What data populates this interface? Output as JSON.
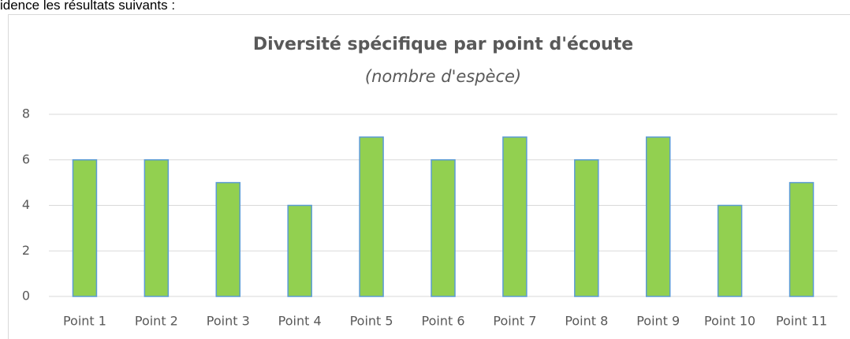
{
  "page_text": "idence les résultats suivants :",
  "chart_data": {
    "type": "bar",
    "title": "Diversité spécifique par point d'écoute",
    "subtitle": "(nombre d'espèce)",
    "categories": [
      "Point 1",
      "Point 2",
      "Point 3",
      "Point 4",
      "Point 5",
      "Point 6",
      "Point 7",
      "Point 8",
      "Point 9",
      "Point 10",
      "Point 11"
    ],
    "values": [
      6,
      6,
      5,
      4,
      7,
      6,
      7,
      6,
      7,
      4,
      5
    ],
    "color": "#92d050",
    "edge_color": "#5b9bd5",
    "ylim": [
      0,
      8
    ],
    "yticks": [
      0,
      2,
      4,
      6,
      8
    ],
    "grid": true
  }
}
